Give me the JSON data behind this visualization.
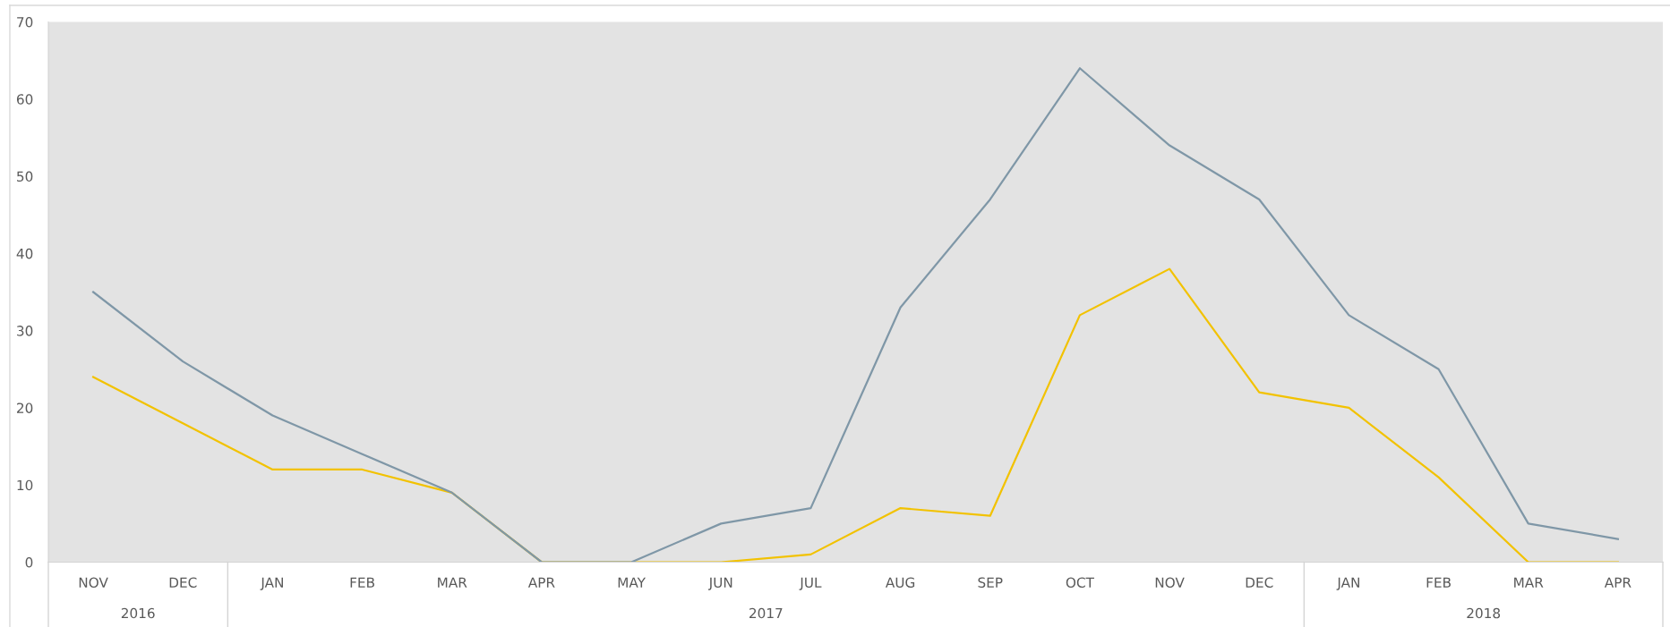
{
  "chart_data": {
    "type": "line",
    "x": [
      "2016-11",
      "2016-12",
      "2017-01",
      "2017-02",
      "2017-03",
      "2017-04",
      "2017-05",
      "2017-06",
      "2017-07",
      "2017-08",
      "2017-09",
      "2017-10",
      "2017-11",
      "2017-12",
      "2018-01",
      "2018-02",
      "2018-03",
      "2018-04"
    ],
    "series": [
      {
        "color": "#f2c200",
        "values": [
          24,
          18,
          12,
          12,
          9,
          0,
          0,
          0,
          1,
          7,
          6,
          32,
          38,
          22,
          20,
          11,
          0,
          0
        ]
      },
      {
        "color": "#7f97a7",
        "values": [
          35,
          26,
          19,
          14,
          9,
          0,
          0,
          5,
          7,
          33,
          47,
          64,
          54,
          47,
          32,
          25,
          5,
          3
        ]
      }
    ],
    "xlim": [
      "2016-10-16T12:00",
      "2018-04-16"
    ],
    "xticks": [
      {
        "value": "2016-11",
        "label": "NOV"
      },
      {
        "value": "2016-12",
        "label": "DEC"
      },
      {
        "value": "2017-01",
        "label": "JAN"
      },
      {
        "value": "2017-02",
        "label": "FEB"
      },
      {
        "value": "2017-03",
        "label": "MAR"
      },
      {
        "value": "2017-04",
        "label": "APR"
      },
      {
        "value": "2017-05",
        "label": "MAY"
      },
      {
        "value": "2017-06",
        "label": "JUN"
      },
      {
        "value": "2017-07",
        "label": "JUL"
      },
      {
        "value": "2017-08",
        "label": "AUG"
      },
      {
        "value": "2017-09",
        "label": "SEP"
      },
      {
        "value": "2017-10",
        "label": "OCT"
      },
      {
        "value": "2017-11",
        "label": "NOV"
      },
      {
        "value": "2017-12",
        "label": "DEC"
      },
      {
        "value": "2018-01",
        "label": "JAN"
      },
      {
        "value": "2018-02",
        "label": "FEB"
      },
      {
        "value": "2018-03",
        "label": "MAR"
      },
      {
        "value": "2018-04",
        "label": "APR"
      }
    ],
    "x2lim": [
      "2016-10-16T12:00",
      "2018-04-16"
    ],
    "x2ticks": [
      {
        "value": "2016-11-16",
        "label": "2016"
      },
      {
        "value": "2017-06-16",
        "label": "2017"
      },
      {
        "value": "2018-02-15",
        "label": "2018"
      }
    ],
    "ylim": [
      0,
      70
    ],
    "yticks": [
      0,
      10,
      20,
      30,
      40,
      50,
      60,
      70
    ],
    "line_style": "solid"
  }
}
